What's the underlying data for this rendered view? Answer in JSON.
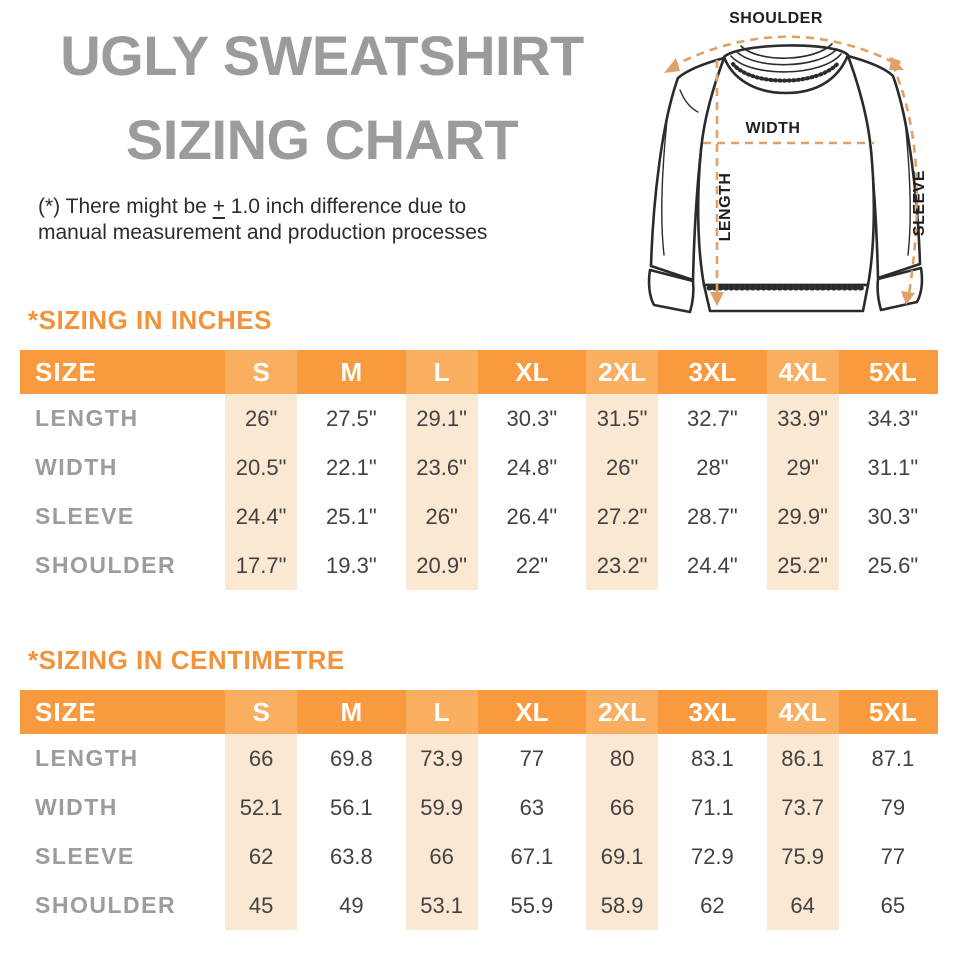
{
  "header": {
    "title_line1": "UGLY SWEATSHIRT",
    "title_line2": "SIZING CHART",
    "note": {
      "line1_pre": "(*) There might be ",
      "plus_sign": "+",
      "line1_post": " 1.0 inch difference due to",
      "line2": "manual measurement and production processes"
    }
  },
  "diagram": {
    "labels": {
      "shoulder": "SHOULDER",
      "width": "WIDTH",
      "length": "LENGTH",
      "sleeve": "SLEEVE"
    }
  },
  "inches": {
    "heading": "*SIZING IN INCHES",
    "columns": [
      "SIZE",
      "S",
      "M",
      "L",
      "XL",
      "2XL",
      "3XL",
      "4XL",
      "5XL"
    ],
    "shaded_value_columns": [
      0,
      2,
      4,
      6
    ],
    "rows": [
      {
        "label": "LENGTH",
        "values": [
          "26\"",
          "27.5\"",
          "29.1\"",
          "30.3\"",
          "31.5\"",
          "32.7\"",
          "33.9\"",
          "34.3\""
        ]
      },
      {
        "label": "WIDTH",
        "values": [
          "20.5\"",
          "22.1\"",
          "23.6\"",
          "24.8\"",
          "26\"",
          "28\"",
          "29\"",
          "31.1\""
        ]
      },
      {
        "label": "SLEEVE",
        "values": [
          "24.4\"",
          "25.1\"",
          "26\"",
          "26.4\"",
          "27.2\"",
          "28.7\"",
          "29.9\"",
          "30.3\""
        ]
      },
      {
        "label": "SHOULDER",
        "values": [
          "17.7\"",
          "19.3\"",
          "20.9\"",
          "22\"",
          "23.2\"",
          "24.4\"",
          "25.2\"",
          "25.6\""
        ]
      }
    ]
  },
  "centimetre": {
    "heading": "*SIZING IN CENTIMETRE",
    "columns": [
      "SIZE",
      "S",
      "M",
      "L",
      "XL",
      "2XL",
      "3XL",
      "4XL",
      "5XL"
    ],
    "shaded_value_columns": [
      0,
      2,
      4,
      6
    ],
    "rows": [
      {
        "label": "LENGTH",
        "values": [
          "66",
          "69.8",
          "73.9",
          "77",
          "80",
          "83.1",
          "86.1",
          "87.1"
        ]
      },
      {
        "label": "WIDTH",
        "values": [
          "52.1",
          "56.1",
          "59.9",
          "63",
          "66",
          "71.1",
          "73.7",
          "79"
        ]
      },
      {
        "label": "SLEEVE",
        "values": [
          "62",
          "63.8",
          "66",
          "67.1",
          "69.1",
          "72.9",
          "75.9",
          "77"
        ]
      },
      {
        "label": "SHOULDER",
        "values": [
          "45",
          "49",
          "53.1",
          "55.9",
          "58.9",
          "62",
          "64",
          "65"
        ]
      }
    ]
  },
  "colors": {
    "header_orange": "#f89a3d",
    "header_orange_light": "#f9ae60",
    "shade_peach": "#fbe8d3",
    "heading_orange": "#f2923a",
    "title_gray": "#9b9b9b",
    "label_gray": "#9c9c9c",
    "value_gray": "#424242",
    "note_black": "#2d2d2d",
    "diagram_dash": "#dfa069",
    "diagram_outline": "#2b2b2b"
  }
}
